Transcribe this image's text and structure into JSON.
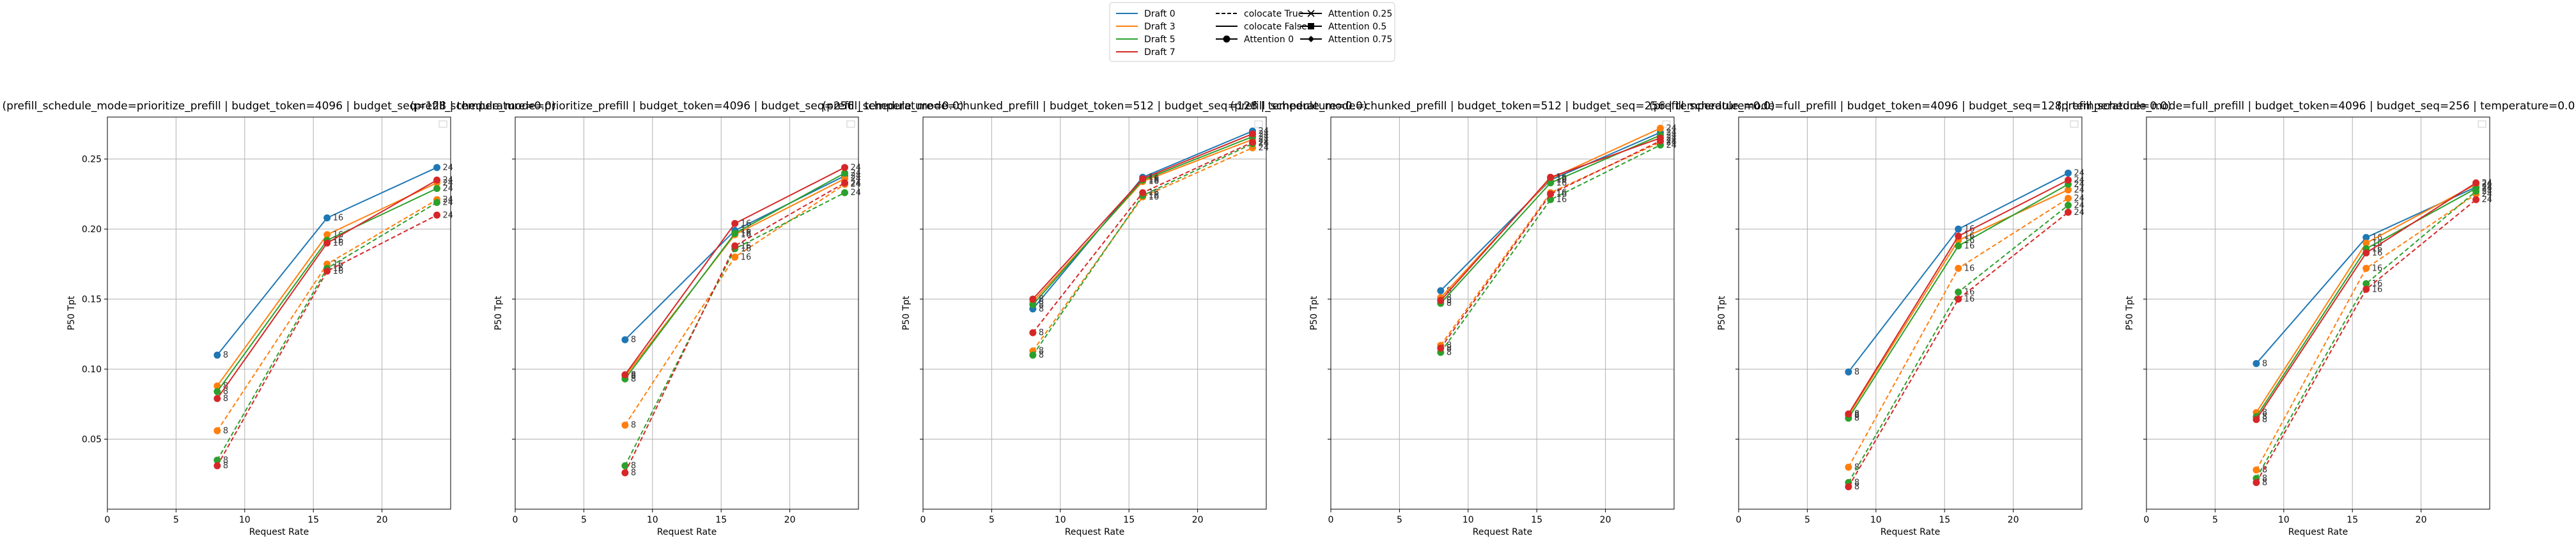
{
  "legend": {
    "entries": [
      {
        "label": "Draft 0",
        "color": "#1f77b4",
        "dash": "solid",
        "marker": "none"
      },
      {
        "label": "Draft 3",
        "color": "#ff7f0e",
        "dash": "solid",
        "marker": "none"
      },
      {
        "label": "Draft 5",
        "color": "#2ca02c",
        "dash": "solid",
        "marker": "none"
      },
      {
        "label": "Draft 7",
        "color": "#d62728",
        "dash": "solid",
        "marker": "none"
      },
      {
        "label": "colocate True",
        "color": "#000000",
        "dash": "dashed",
        "marker": "none"
      },
      {
        "label": "colocate False",
        "color": "#000000",
        "dash": "solid",
        "marker": "none"
      },
      {
        "label": "Attention 0",
        "color": "#000000",
        "dash": "solid",
        "marker": "circle"
      },
      {
        "label": "Attention 0.25",
        "color": "#000000",
        "dash": "solid",
        "marker": "x"
      },
      {
        "label": "Attention 0.5",
        "color": "#000000",
        "dash": "solid",
        "marker": "square"
      },
      {
        "label": "Attention 0.75",
        "color": "#000000",
        "dash": "solid",
        "marker": "diamond"
      }
    ],
    "placement": "top-center"
  },
  "chart_data": [
    {
      "type": "line",
      "title": "(prefill_schedule_mode=prioritize_prefill | budget_token=4096 | budget_seq=128 | temperature=0.0)",
      "xlabel": "Request Rate",
      "ylabel": "P50 Tpt",
      "xlim": [
        0,
        25
      ],
      "ylim": [
        0,
        0.28
      ],
      "xticks": [
        0,
        5,
        10,
        15,
        20
      ],
      "yticks": [
        0.05,
        0.1,
        0.15,
        0.2,
        0.25
      ],
      "x": [
        8,
        16,
        24
      ],
      "grid": true,
      "series": [
        {
          "draft": "Draft 0",
          "colocate": "False",
          "values": [
            0.11,
            0.208,
            0.244
          ]
        },
        {
          "draft": "Draft 3",
          "colocate": "False",
          "values": [
            0.088,
            0.196,
            0.233
          ]
        },
        {
          "draft": "Draft 5",
          "colocate": "False",
          "values": [
            0.084,
            0.192,
            0.229
          ]
        },
        {
          "draft": "Draft 7",
          "colocate": "False",
          "values": [
            0.079,
            0.19,
            0.235
          ]
        },
        {
          "draft": "Draft 3",
          "colocate": "True",
          "values": [
            0.056,
            0.175,
            0.221
          ]
        },
        {
          "draft": "Draft 5",
          "colocate": "True",
          "values": [
            0.035,
            0.172,
            0.219
          ]
        },
        {
          "draft": "Draft 7",
          "colocate": "True",
          "values": [
            0.031,
            0.17,
            0.21
          ]
        }
      ],
      "point_labels": [
        "8",
        "16",
        "24"
      ]
    },
    {
      "type": "line",
      "title": "(prefill_schedule_mode=prioritize_prefill | budget_token=4096 | budget_seq=256 | temperature=0.0)",
      "xlabel": "Request Rate",
      "ylabel": "P50 Tpt",
      "xlim": [
        0,
        25
      ],
      "ylim": [
        0,
        0.28
      ],
      "xticks": [
        0,
        5,
        10,
        15,
        20
      ],
      "yticks": [
        0.05,
        0.1,
        0.15,
        0.2,
        0.25
      ],
      "x": [
        8,
        16,
        24
      ],
      "grid": true,
      "series": [
        {
          "draft": "Draft 0",
          "colocate": "False",
          "values": [
            0.121,
            0.199,
            0.238
          ]
        },
        {
          "draft": "Draft 3",
          "colocate": "False",
          "values": [
            0.095,
            0.196,
            0.236
          ]
        },
        {
          "draft": "Draft 5",
          "colocate": "False",
          "values": [
            0.093,
            0.197,
            0.24
          ]
        },
        {
          "draft": "Draft 7",
          "colocate": "False",
          "values": [
            0.096,
            0.204,
            0.244
          ]
        },
        {
          "draft": "Draft 3",
          "colocate": "True",
          "values": [
            0.06,
            0.18,
            0.232
          ]
        },
        {
          "draft": "Draft 5",
          "colocate": "True",
          "values": [
            0.031,
            0.186,
            0.226
          ]
        },
        {
          "draft": "Draft 7",
          "colocate": "True",
          "values": [
            0.026,
            0.188,
            0.233
          ]
        }
      ],
      "point_labels": [
        "8",
        "16",
        "24"
      ]
    },
    {
      "type": "line",
      "title": "(prefill_schedule_mode=chunked_prefill | budget_token=512 | budget_seq=128 | temperature=0.0)",
      "xlabel": "Request Rate",
      "ylabel": "P50 Tpt",
      "xlim": [
        0,
        25
      ],
      "ylim": [
        0,
        0.28
      ],
      "xticks": [
        0,
        5,
        10,
        15,
        20
      ],
      "yticks": [
        0.05,
        0.1,
        0.15,
        0.2,
        0.25
      ],
      "x": [
        8,
        16,
        24
      ],
      "grid": true,
      "series": [
        {
          "draft": "Draft 0",
          "colocate": "False",
          "values": [
            0.143,
            0.237,
            0.27
          ]
        },
        {
          "draft": "Draft 3",
          "colocate": "False",
          "values": [
            0.148,
            0.234,
            0.264
          ]
        },
        {
          "draft": "Draft 5",
          "colocate": "False",
          "values": [
            0.146,
            0.235,
            0.266
          ]
        },
        {
          "draft": "Draft 7",
          "colocate": "False",
          "values": [
            0.15,
            0.236,
            0.268
          ]
        },
        {
          "draft": "Draft 3",
          "colocate": "True",
          "values": [
            0.113,
            0.223,
            0.258
          ]
        },
        {
          "draft": "Draft 5",
          "colocate": "True",
          "values": [
            0.11,
            0.224,
            0.261
          ]
        },
        {
          "draft": "Draft 7",
          "colocate": "True",
          "values": [
            0.126,
            0.226,
            0.262
          ]
        }
      ],
      "point_labels": [
        "8",
        "16",
        "24"
      ]
    },
    {
      "type": "line",
      "title": "(prefill_schedule_mode=chunked_prefill | budget_token=512 | budget_seq=256 | temperature=0.0)",
      "xlabel": "Request Rate",
      "ylabel": "P50 Tpt",
      "xlim": [
        0,
        25
      ],
      "ylim": [
        0,
        0.28
      ],
      "xticks": [
        0,
        5,
        10,
        15,
        20
      ],
      "yticks": [
        0.05,
        0.1,
        0.15,
        0.2,
        0.25
      ],
      "x": [
        8,
        16,
        24
      ],
      "grid": true,
      "series": [
        {
          "draft": "Draft 0",
          "colocate": "False",
          "values": [
            0.156,
            0.235,
            0.269
          ]
        },
        {
          "draft": "Draft 3",
          "colocate": "False",
          "values": [
            0.151,
            0.236,
            0.272
          ]
        },
        {
          "draft": "Draft 5",
          "colocate": "False",
          "values": [
            0.147,
            0.233,
            0.267
          ]
        },
        {
          "draft": "Draft 7",
          "colocate": "False",
          "values": [
            0.149,
            0.237,
            0.265
          ]
        },
        {
          "draft": "Draft 3",
          "colocate": "True",
          "values": [
            0.117,
            0.226,
            0.262
          ]
        },
        {
          "draft": "Draft 5",
          "colocate": "True",
          "values": [
            0.112,
            0.221,
            0.26
          ]
        },
        {
          "draft": "Draft 7",
          "colocate": "True",
          "values": [
            0.115,
            0.225,
            0.263
          ]
        }
      ],
      "point_labels": [
        "8",
        "16",
        "24"
      ]
    },
    {
      "type": "line",
      "title": "(prefill_schedule_mode=full_prefill | budget_token=4096 | budget_seq=128 | temperature=0.0)",
      "xlabel": "Request Rate",
      "ylabel": "P50 Tpt",
      "xlim": [
        0,
        25
      ],
      "ylim": [
        0,
        0.28
      ],
      "xticks": [
        0,
        5,
        10,
        15,
        20
      ],
      "yticks": [
        0.05,
        0.1,
        0.15,
        0.2,
        0.25
      ],
      "x": [
        8,
        16,
        24
      ],
      "grid": true,
      "series": [
        {
          "draft": "Draft 0",
          "colocate": "False",
          "values": [
            0.098,
            0.2,
            0.24
          ]
        },
        {
          "draft": "Draft 3",
          "colocate": "False",
          "values": [
            0.067,
            0.192,
            0.228
          ]
        },
        {
          "draft": "Draft 5",
          "colocate": "False",
          "values": [
            0.065,
            0.188,
            0.232
          ]
        },
        {
          "draft": "Draft 7",
          "colocate": "False",
          "values": [
            0.068,
            0.195,
            0.235
          ]
        },
        {
          "draft": "Draft 3",
          "colocate": "True",
          "values": [
            0.03,
            0.172,
            0.222
          ]
        },
        {
          "draft": "Draft 5",
          "colocate": "True",
          "values": [
            0.019,
            0.155,
            0.217
          ]
        },
        {
          "draft": "Draft 7",
          "colocate": "True",
          "values": [
            0.016,
            0.15,
            0.212
          ]
        }
      ],
      "point_labels": [
        "8",
        "16",
        "24"
      ]
    },
    {
      "type": "line",
      "title": "(prefill_schedule_mode=full_prefill | budget_token=4096 | budget_seq=256 | temperature=0.0)",
      "xlabel": "Request Rate",
      "ylabel": "P50 Tpt",
      "xlim": [
        0,
        25
      ],
      "ylim": [
        0,
        0.28
      ],
      "xticks": [
        0,
        5,
        10,
        15,
        20
      ],
      "yticks": [
        0.05,
        0.1,
        0.15,
        0.2,
        0.25
      ],
      "x": [
        8,
        16,
        24
      ],
      "grid": true,
      "series": [
        {
          "draft": "Draft 0",
          "colocate": "False",
          "values": [
            0.104,
            0.194,
            0.23
          ]
        },
        {
          "draft": "Draft 3",
          "colocate": "False",
          "values": [
            0.069,
            0.19,
            0.232
          ]
        },
        {
          "draft": "Draft 5",
          "colocate": "False",
          "values": [
            0.066,
            0.186,
            0.229
          ]
        },
        {
          "draft": "Draft 7",
          "colocate": "False",
          "values": [
            0.064,
            0.183,
            0.233
          ]
        },
        {
          "draft": "Draft 3",
          "colocate": "True",
          "values": [
            0.028,
            0.172,
            0.225
          ]
        },
        {
          "draft": "Draft 5",
          "colocate": "True",
          "values": [
            0.022,
            0.161,
            0.227
          ]
        },
        {
          "draft": "Draft 7",
          "colocate": "True",
          "values": [
            0.019,
            0.157,
            0.221
          ]
        }
      ],
      "point_labels": [
        "8",
        "16",
        "24"
      ]
    }
  ]
}
